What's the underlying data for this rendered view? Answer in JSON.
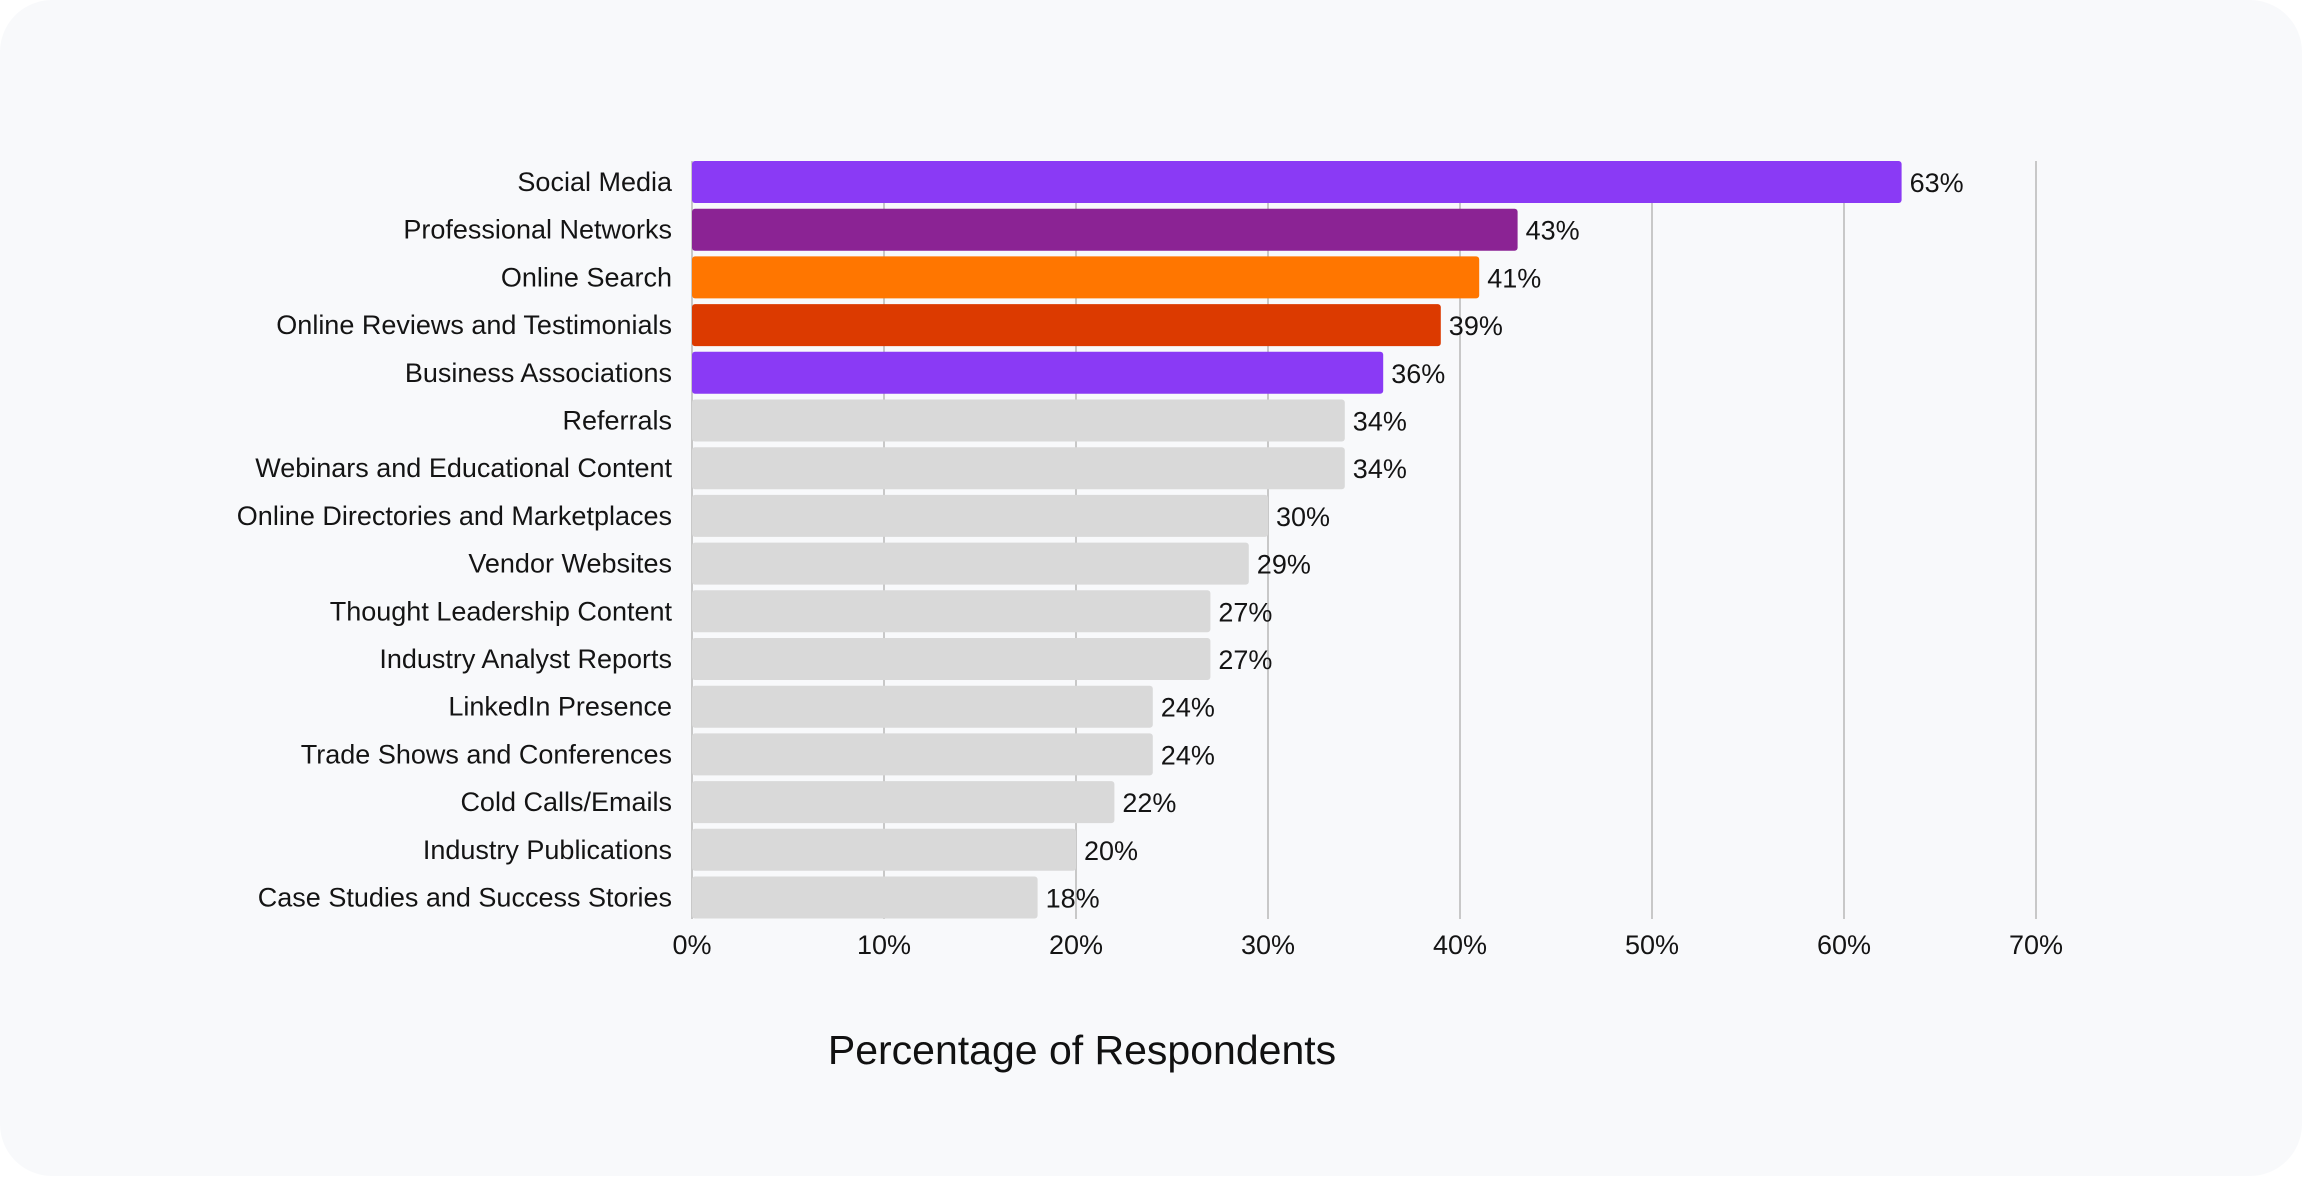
{
  "chart_data": {
    "type": "bar",
    "orientation": "horizontal",
    "title": "",
    "xlabel": "Percentage of Respondents",
    "ylabel": "",
    "xlim": [
      0,
      70
    ],
    "x_ticks": [
      0,
      10,
      20,
      30,
      40,
      50,
      60,
      70
    ],
    "x_tick_labels": [
      "0%",
      "10%",
      "20%",
      "30%",
      "40%",
      "50%",
      "60%",
      "70%"
    ],
    "grid": "vertical",
    "categories": [
      "Social Media",
      "Professional Networks",
      "Online Search",
      "Online Reviews and Testimonials",
      "Business Associations",
      "Referrals",
      "Webinars and Educational Content",
      "Online Directories and Marketplaces",
      "Vendor Websites",
      "Thought Leadership Content",
      "Industry Analyst Reports",
      "LinkedIn Presence",
      "Trade Shows and Conferences",
      "Cold Calls/Emails",
      "Industry Publications",
      "Case Studies and Success Stories"
    ],
    "values": [
      63,
      43,
      41,
      39,
      36,
      34,
      34,
      30,
      29,
      27,
      27,
      24,
      24,
      22,
      20,
      18
    ],
    "value_labels": [
      "63%",
      "43%",
      "41%",
      "39%",
      "36%",
      "34%",
      "34%",
      "30%",
      "29%",
      "27%",
      "27%",
      "24%",
      "24%",
      "22%",
      "20%",
      "18%"
    ],
    "colors": [
      "#8a3af5",
      "#8b2394",
      "#ff7600",
      "#dc3a00",
      "#8a3af5",
      "#d9d9d9",
      "#d9d9d9",
      "#d9d9d9",
      "#d9d9d9",
      "#d9d9d9",
      "#d9d9d9",
      "#d9d9d9",
      "#d9d9d9",
      "#d9d9d9",
      "#d9d9d9",
      "#d9d9d9"
    ],
    "grid_color": "#c8c8c8",
    "background_color": "#f8f9fb"
  }
}
